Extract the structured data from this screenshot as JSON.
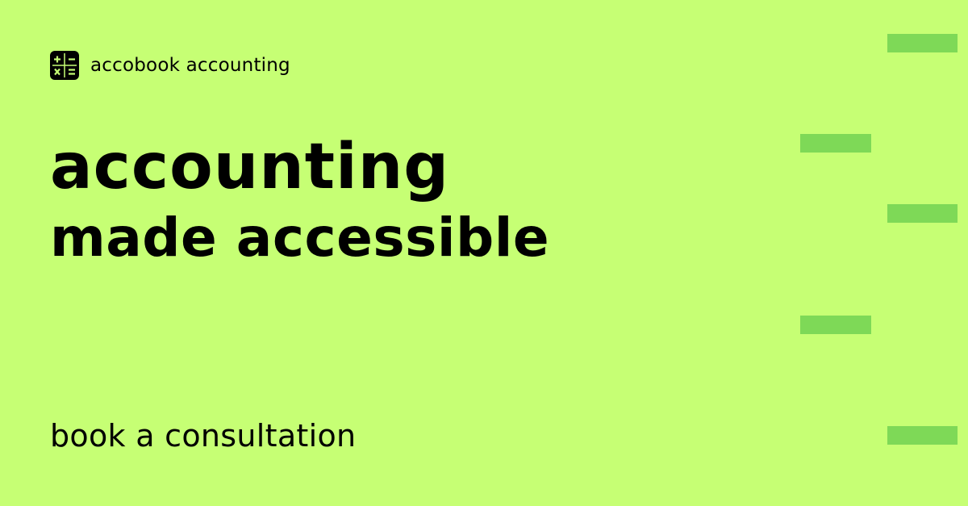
{
  "brand": {
    "logo_icon": "calculator-icon",
    "name": "accobook accounting"
  },
  "headline": {
    "line1": "accounting",
    "line2": "made accessible"
  },
  "cta": {
    "label": "book a consultation"
  },
  "colors": {
    "background": "#c6ff74",
    "accent": "#7ed957",
    "text": "#000000"
  }
}
